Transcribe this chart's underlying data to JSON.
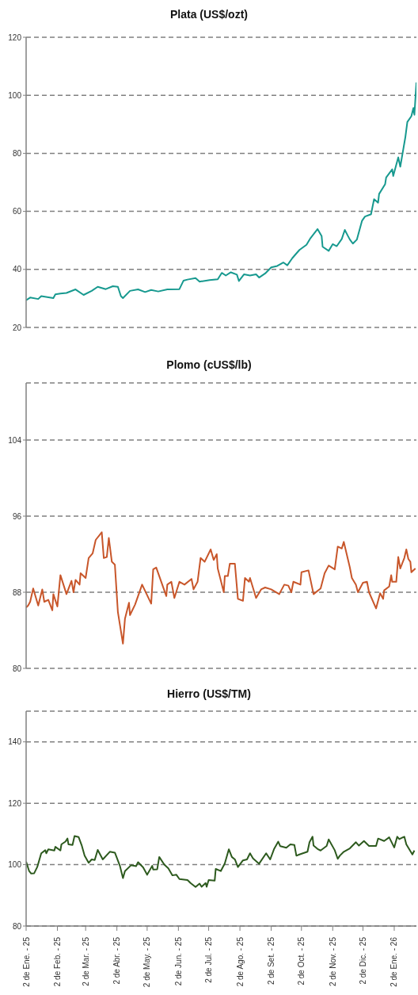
{
  "chart_data": [
    {
      "type": "line",
      "title": "Plata (US$/ozt)",
      "tick_labels": "y",
      "grid": "y",
      "xlim": [
        "2025-01-02",
        "2026-01-24"
      ],
      "ylim": [
        20,
        120
      ],
      "yticks": [
        20,
        40,
        60,
        80,
        100,
        120
      ],
      "series": [
        {
          "color": "#17998f",
          "x": [
            "2025-01-02",
            "2025-01-06",
            "2025-01-14",
            "2025-01-17",
            "2025-01-29",
            "2025-01-31",
            "2025-02-05",
            "2025-02-11",
            "2025-02-20",
            "2025-02-28",
            "2025-03-08",
            "2025-03-14",
            "2025-03-22",
            "2025-03-29",
            "2025-04-03",
            "2025-04-06",
            "2025-04-08",
            "2025-04-15",
            "2025-04-23",
            "2025-04-30",
            "2025-05-06",
            "2025-05-13",
            "2025-05-22",
            "2025-06-03",
            "2025-06-07",
            "2025-06-11",
            "2025-06-19",
            "2025-06-23",
            "2025-07-03",
            "2025-07-11",
            "2025-07-15",
            "2025-07-19",
            "2025-07-24",
            "2025-07-30",
            "2025-08-01",
            "2025-08-06",
            "2025-08-12",
            "2025-08-18",
            "2025-08-21",
            "2025-08-27",
            "2025-09-02",
            "2025-09-08",
            "2025-09-14",
            "2025-09-18",
            "2025-09-23",
            "2025-09-30",
            "2025-10-07",
            "2025-10-11",
            "2025-10-18",
            "2025-10-22",
            "2025-10-23",
            "2025-10-29",
            "2025-11-02",
            "2025-11-06",
            "2025-11-11",
            "2025-11-14",
            "2025-11-17",
            "2025-11-19",
            "2025-11-22",
            "2025-11-26",
            "2025-12-01",
            "2025-12-04",
            "2025-12-10",
            "2025-12-13",
            "2025-12-17",
            "2025-12-18",
            "2025-12-24",
            "2025-12-25",
            "2025-12-31",
            "2026-01-01",
            "2026-01-06",
            "2026-01-08",
            "2026-01-13",
            "2026-01-15",
            "2026-01-19",
            "2026-01-21",
            "2026-01-22",
            "2026-01-24"
          ],
          "values": [
            29.4,
            30.3,
            29.8,
            30.8,
            30.1,
            31.4,
            31.7,
            31.9,
            33.1,
            31.2,
            32.6,
            34,
            33.2,
            34.2,
            34,
            30.8,
            30.1,
            32.6,
            33.1,
            32.2,
            32.9,
            32.4,
            33.1,
            33.2,
            36.1,
            36.5,
            37,
            35.8,
            36.3,
            36.6,
            38.8,
            37.9,
            39,
            38.2,
            36,
            38.3,
            37.9,
            38.3,
            37.2,
            38.6,
            40.7,
            41.2,
            42.4,
            41.4,
            43.9,
            46.7,
            48.5,
            50.8,
            53.9,
            51.5,
            47.8,
            46.4,
            48.7,
            48,
            50.5,
            53.6,
            51.6,
            50.3,
            48.9,
            50.3,
            56.7,
            58.2,
            59,
            64.2,
            63,
            66,
            69.4,
            71.7,
            74.5,
            72.2,
            78.6,
            75.4,
            85.5,
            90.8,
            92.8,
            95.6,
            93.3,
            104.4
          ]
        }
      ]
    },
    {
      "type": "line",
      "title": "Plomo (cUS$/lb)",
      "tick_labels": "y",
      "grid": "y",
      "xlim": [
        "2025-01-02",
        "2026-01-24"
      ],
      "ylim": [
        80,
        110
      ],
      "yticks": [
        80,
        88,
        96,
        104
      ],
      "series": [
        {
          "color": "#c8562a",
          "x": [
            "2025-01-02",
            "2025-01-04",
            "2025-01-06",
            "2025-01-09",
            "2025-01-14",
            "2025-01-18",
            "2025-01-20",
            "2025-01-24",
            "2025-01-28",
            "2025-01-29",
            "2025-02-02",
            "2025-02-05",
            "2025-02-11",
            "2025-02-16",
            "2025-02-18",
            "2025-02-20",
            "2025-02-24",
            "2025-02-25",
            "2025-03-02",
            "2025-03-05",
            "2025-03-09",
            "2025-03-12",
            "2025-03-18",
            "2025-03-20",
            "2025-03-23",
            "2025-03-25",
            "2025-03-28",
            "2025-03-31",
            "2025-04-03",
            "2025-04-08",
            "2025-04-10",
            "2025-04-14",
            "2025-04-15",
            "2025-04-20",
            "2025-04-27",
            "2025-05-06",
            "2025-05-08",
            "2025-05-11",
            "2025-05-14",
            "2025-05-21",
            "2025-05-22",
            "2025-05-26",
            "2025-05-29",
            "2025-06-03",
            "2025-06-08",
            "2025-06-15",
            "2025-06-17",
            "2025-06-21",
            "2025-06-24",
            "2025-06-28",
            "2025-07-04",
            "2025-07-07",
            "2025-07-10",
            "2025-07-11",
            "2025-07-17",
            "2025-07-18",
            "2025-07-21",
            "2025-07-23",
            "2025-07-28",
            "2025-07-31",
            "2025-08-05",
            "2025-08-07",
            "2025-08-11",
            "2025-08-12",
            "2025-08-18",
            "2025-08-23",
            "2025-08-27",
            "2025-09-02",
            "2025-09-10",
            "2025-09-15",
            "2025-09-19",
            "2025-09-22",
            "2025-09-24",
            "2025-10-01",
            "2025-10-02",
            "2025-10-09",
            "2025-10-14",
            "2025-10-21",
            "2025-10-25",
            "2025-10-29",
            "2025-11-04",
            "2025-11-07",
            "2025-11-11",
            "2025-11-13",
            "2025-11-19",
            "2025-11-21",
            "2025-11-25",
            "2025-11-27",
            "2025-12-02",
            "2025-12-06",
            "2025-12-08",
            "2025-12-15",
            "2025-12-19",
            "2025-12-22",
            "2025-12-23",
            "2025-12-28",
            "2025-12-30",
            "2025-12-31",
            "2026-01-04",
            "2026-01-06",
            "2026-01-08",
            "2026-01-12",
            "2026-01-14",
            "2026-01-16",
            "2026-01-18",
            "2026-01-19",
            "2026-01-23"
          ],
          "values": [
            86.4,
            86.6,
            87,
            88.4,
            86.6,
            88.3,
            87,
            87.2,
            86.1,
            87.8,
            86.5,
            89.8,
            87.8,
            89.2,
            88,
            89.3,
            88.8,
            90,
            89.5,
            91.6,
            92.1,
            93.5,
            94.3,
            91.6,
            91.7,
            93.7,
            91.2,
            90.9,
            85.9,
            82.6,
            85.2,
            86.9,
            85.6,
            86.7,
            88.8,
            86.8,
            90.4,
            90.6,
            89.7,
            87.6,
            88.8,
            89.1,
            87.4,
            89.1,
            88.8,
            89.4,
            88.3,
            89.1,
            91.6,
            91.2,
            92.5,
            91.4,
            92,
            90.5,
            88,
            89.7,
            89.7,
            91,
            91,
            87.3,
            87.1,
            89.5,
            89.1,
            89.5,
            87.4,
            88.3,
            88.5,
            88.3,
            87.8,
            88.8,
            88.7,
            88,
            89.1,
            88.8,
            90.1,
            90.3,
            87.8,
            88.4,
            90,
            90.8,
            90.4,
            92.8,
            92.6,
            93.3,
            90.6,
            89.5,
            88.8,
            88,
            89,
            89.1,
            88,
            86.3,
            87.9,
            87.3,
            88.2,
            88.6,
            89.8,
            89.1,
            89.1,
            91.7,
            90.5,
            91.6,
            92.5,
            91.5,
            91.2,
            90.1,
            90.5
          ]
        }
      ]
    },
    {
      "type": "line",
      "title": "Hierro (US$/TM)",
      "grid": "y",
      "xlim": [
        "2025-01-02",
        "2026-01-24"
      ],
      "xticks": [
        {
          "value": "2025-01-02",
          "label": "2 de Ene. - 25"
        },
        {
          "value": "2025-02-02",
          "label": "2 de Feb. - 25"
        },
        {
          "value": "2025-03-02",
          "label": "2 de Mar. - 25"
        },
        {
          "value": "2025-04-02",
          "label": "2 de Abr. - 25"
        },
        {
          "value": "2025-05-02",
          "label": "2 de May. - 25"
        },
        {
          "value": "2025-06-02",
          "label": "2 de Jun. - 25"
        },
        {
          "value": "2025-07-02",
          "label": "2 de Jul. - 25"
        },
        {
          "value": "2025-08-02",
          "label": "2 de Ago. - 25"
        },
        {
          "value": "2025-09-02",
          "label": "2 de Set. - 25"
        },
        {
          "value": "2025-10-02",
          "label": "2 de Oct. - 25"
        },
        {
          "value": "2025-11-02",
          "label": "2 de Nov. - 25"
        },
        {
          "value": "2025-12-02",
          "label": "2 de Dic. - 25"
        },
        {
          "value": "2026-01-02",
          "label": "2 de Ene. - 26"
        }
      ],
      "ylim": [
        80,
        150
      ],
      "yticks": [
        80,
        100,
        120,
        140
      ],
      "series": [
        {
          "color": "#2d5a1e",
          "x": [
            "2025-01-02",
            "2025-01-05",
            "2025-01-07",
            "2025-01-10",
            "2025-01-13",
            "2025-01-17",
            "2025-01-21",
            "2025-01-22",
            "2025-01-24",
            "2025-01-30",
            "2025-01-31",
            "2025-02-05",
            "2025-02-06",
            "2025-02-10",
            "2025-02-12",
            "2025-02-13",
            "2025-02-17",
            "2025-02-19",
            "2025-02-23",
            "2025-02-26",
            "2025-03-01",
            "2025-03-05",
            "2025-03-08",
            "2025-03-11",
            "2025-03-14",
            "2025-03-19",
            "2025-03-26",
            "2025-03-31",
            "2025-04-05",
            "2025-04-08",
            "2025-04-10",
            "2025-04-16",
            "2025-04-21",
            "2025-04-23",
            "2025-04-28",
            "2025-05-02",
            "2025-05-07",
            "2025-05-08",
            "2025-05-12",
            "2025-05-14",
            "2025-05-19",
            "2025-05-23",
            "2025-05-27",
            "2025-05-31",
            "2025-06-03",
            "2025-06-11",
            "2025-06-14",
            "2025-06-19",
            "2025-06-23",
            "2025-06-25",
            "2025-06-29",
            "2025-06-30",
            "2025-07-02",
            "2025-07-08",
            "2025-07-09",
            "2025-07-14",
            "2025-07-18",
            "2025-07-22",
            "2025-07-25",
            "2025-07-28",
            "2025-07-31",
            "2025-08-05",
            "2025-08-09",
            "2025-08-12",
            "2025-08-15",
            "2025-08-21",
            "2025-08-28",
            "2025-09-01",
            "2025-09-05",
            "2025-09-09",
            "2025-09-11",
            "2025-09-17",
            "2025-09-21",
            "2025-09-25",
            "2025-09-27",
            "2025-09-30",
            "2025-10-08",
            "2025-10-10",
            "2025-10-13",
            "2025-10-14",
            "2025-10-18",
            "2025-10-21",
            "2025-10-27",
            "2025-10-29",
            "2025-11-04",
            "2025-11-07",
            "2025-11-09",
            "2025-11-13",
            "2025-11-19",
            "2025-11-25",
            "2025-11-28",
            "2025-12-03",
            "2025-12-08",
            "2025-12-15",
            "2025-12-17",
            "2025-12-23",
            "2025-12-28",
            "2026-01-02",
            "2026-01-05",
            "2026-01-07",
            "2026-01-12",
            "2026-01-14",
            "2026-01-20",
            "2026-01-22"
          ],
          "values": [
            101,
            97.9,
            97.1,
            97.2,
            99.2,
            103.7,
            104.7,
            103.7,
            105,
            104.6,
            105.8,
            104.6,
            106.6,
            107.5,
            108.5,
            106.6,
            106.4,
            109.3,
            109,
            106.4,
            102.9,
            100.6,
            101.7,
            101.5,
            104.8,
            101.7,
            104.2,
            103.9,
            99.6,
            95.6,
            97.9,
            99.8,
            99.5,
            100.8,
            99.1,
            96.7,
            99.6,
            98.4,
            98.5,
            102.5,
            100,
            98.8,
            96.5,
            96.7,
            95.3,
            95,
            94,
            92.7,
            93.8,
            92.8,
            94,
            92.8,
            95,
            94.8,
            98.6,
            97.9,
            100.4,
            105,
            102.5,
            101.7,
            99.2,
            101.4,
            101.7,
            103.7,
            102,
            100.3,
            103.7,
            101.7,
            105.2,
            107.5,
            106,
            105.5,
            106.6,
            106.4,
            102.9,
            103.3,
            104.2,
            107.3,
            109.1,
            106.2,
            105.1,
            104.6,
            106.1,
            108.2,
            104.7,
            101.9,
            102.9,
            104.2,
            105.3,
            107.3,
            106.2,
            107.7,
            106.1,
            106.1,
            108.5,
            107.7,
            108.9,
            105.6,
            109.1,
            108.3,
            109.1,
            106.6,
            103.3,
            104.6
          ]
        }
      ]
    }
  ]
}
